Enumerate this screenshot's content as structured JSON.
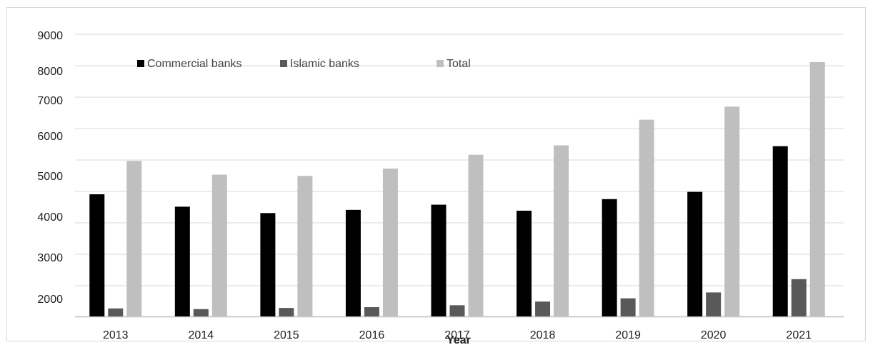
{
  "chart_data": {
    "type": "bar",
    "title": "",
    "xlabel": "Year",
    "ylabel": "",
    "categories": [
      "2013",
      "2014",
      "2015",
      "2016",
      "2017",
      "2018",
      "2019",
      "2020",
      "2021"
    ],
    "y_tick_labels": [
      "9000",
      "8000",
      "7000",
      "6000",
      "5000",
      "4000",
      "3000",
      "2000"
    ],
    "gridlines": true,
    "legend_position": "top",
    "series": [
      {
        "name": "Commercial banks",
        "color": "#000000",
        "values": [
          4500,
          4190,
          4030,
          4110,
          4240,
          4090,
          4380,
          4560,
          5690
        ]
      },
      {
        "name": "Islamic banks",
        "color": "#595959",
        "values": [
          830,
          760,
          880,
          960,
          1160,
          1540,
          1880,
          2110,
          2420
        ]
      },
      {
        "name": "Total",
        "color": "#bfbfbf",
        "values": [
          5330,
          4990,
          4960,
          5140,
          5480,
          5710,
          6380,
          6740,
          8190
        ]
      }
    ]
  }
}
